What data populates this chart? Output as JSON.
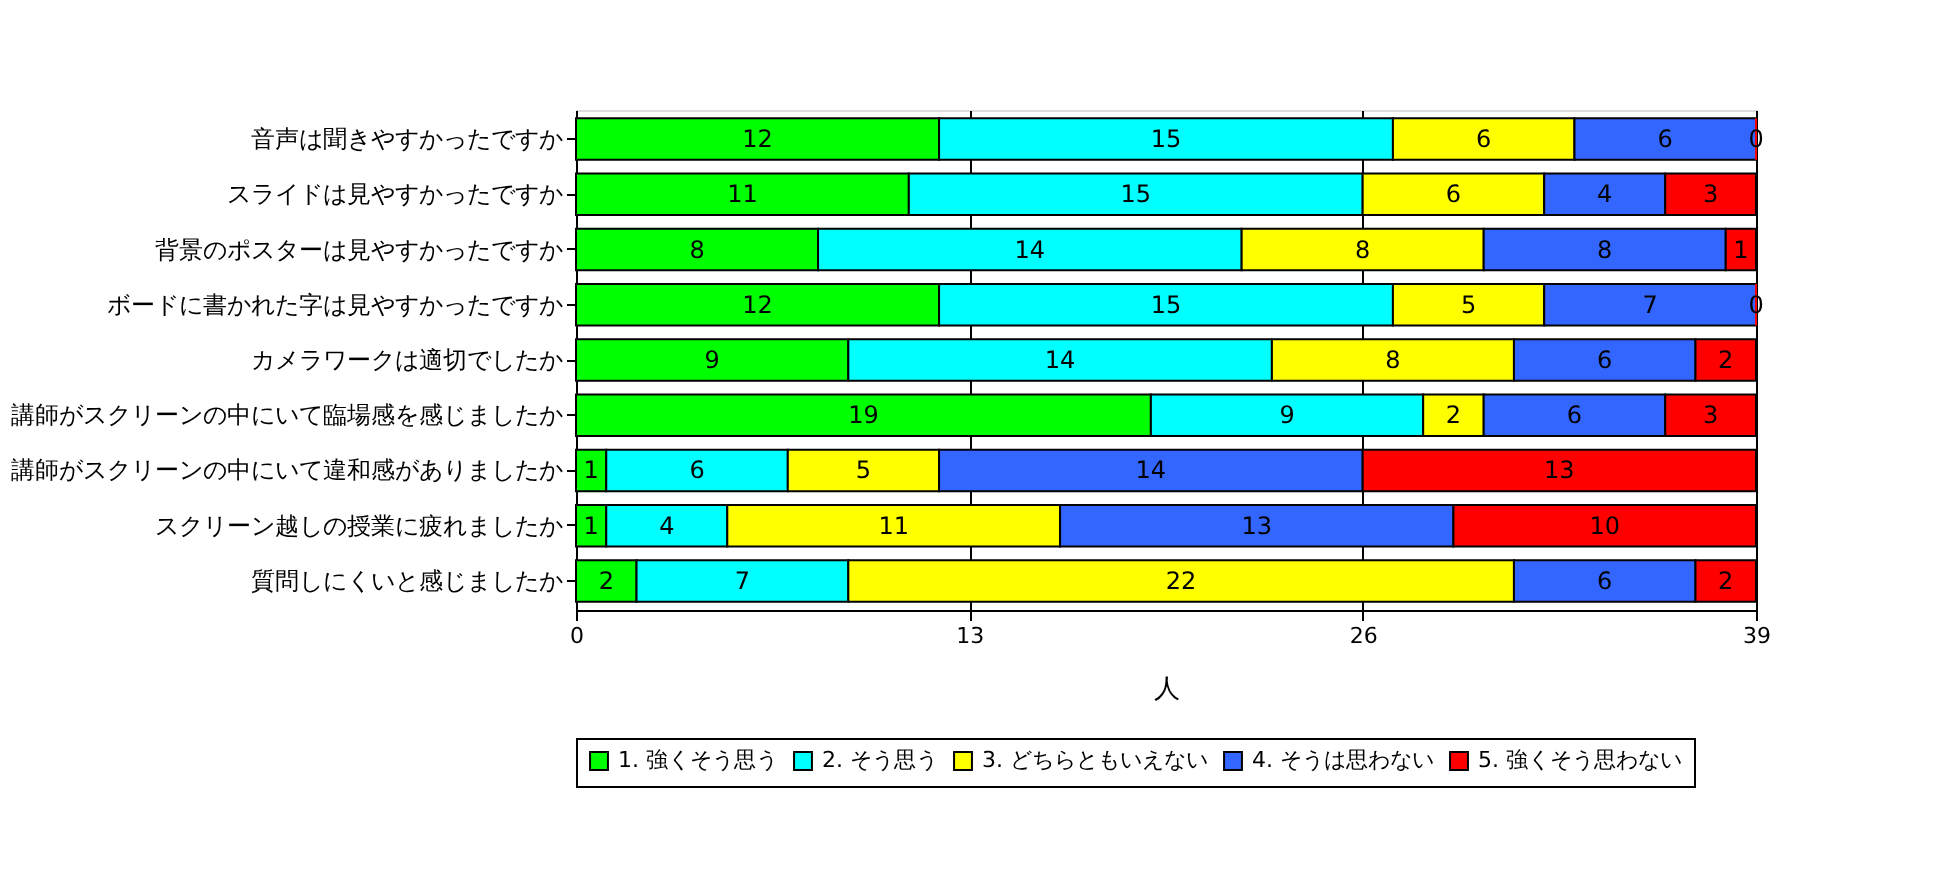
{
  "chart_data": {
    "type": "bar",
    "orientation": "horizontal",
    "stacked": true,
    "data_labels": true,
    "xlabel": "人",
    "xlim": [
      0,
      39
    ],
    "xticks": [
      0,
      13,
      26,
      39
    ],
    "grid": "x",
    "legend": "bottom",
    "categories": [
      "音声は聞きやすかったですか",
      "スライドは見やすかったですか",
      "背景のポスターは見やすかったですか",
      "ボードに書かれた字は見やすかったですか",
      "カメラワークは適切でしたか",
      "講師がスクリーンの中にいて臨場感を感じましたか",
      "講師がスクリーンの中にいて違和感がありましたか",
      "スクリーン越しの授業に疲れましたか",
      "質問しにくいと感じましたか"
    ],
    "series": [
      {
        "name": "1. 強くそう思う",
        "color": "#00ff00",
        "values": [
          12,
          11,
          8,
          12,
          9,
          19,
          1,
          1,
          2
        ]
      },
      {
        "name": "2. そう思う",
        "color": "#00ffff",
        "values": [
          15,
          15,
          14,
          15,
          14,
          9,
          6,
          4,
          7
        ]
      },
      {
        "name": "3. どちらともいえない",
        "color": "#ffff00",
        "values": [
          6,
          6,
          8,
          5,
          8,
          2,
          5,
          11,
          22
        ]
      },
      {
        "name": "4. そうは思わない",
        "color": "#3366ff",
        "values": [
          6,
          4,
          8,
          7,
          6,
          6,
          14,
          13,
          6
        ]
      },
      {
        "name": "5. 強くそう思わない",
        "color": "#ff0000",
        "values": [
          0,
          3,
          1,
          0,
          2,
          3,
          13,
          10,
          2
        ]
      }
    ]
  }
}
